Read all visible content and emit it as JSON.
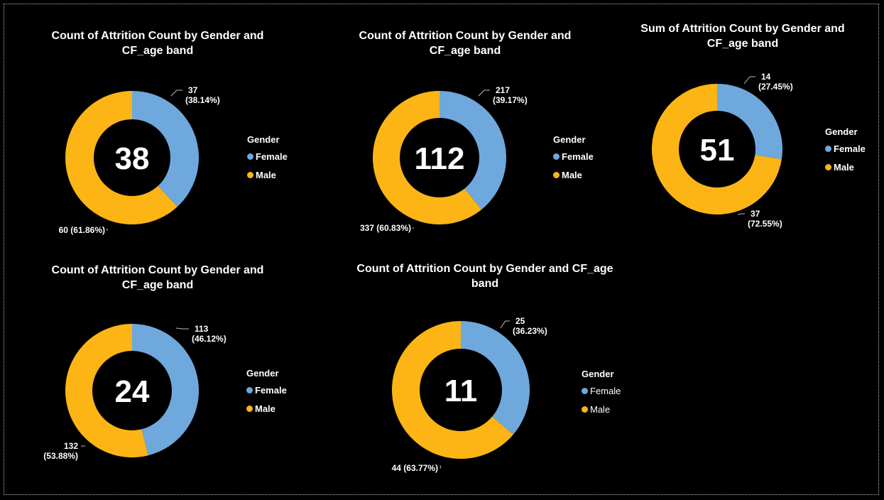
{
  "colors": {
    "female": "#6fa8dc",
    "male": "#fdb515",
    "hole": "#000000",
    "leader": "#bbbbbb"
  },
  "chart_data": [
    {
      "type": "pie",
      "title": "Count of Attrition Count by Gender and CF_age band",
      "title_lines": [
        "Count of Attrition Count by Gender and",
        "CF_age band"
      ],
      "center_value": "38",
      "legend_title": "Gender",
      "categories": [
        "Female",
        "Male"
      ],
      "values": [
        37,
        60
      ],
      "labels": [
        [
          "37",
          "(38.14%)"
        ],
        [
          "60 (61.86%)"
        ]
      ]
    },
    {
      "type": "pie",
      "title": "Count of Attrition Count by Gender and CF_age band",
      "title_lines": [
        "Count of Attrition Count by Gender and",
        "CF_age band"
      ],
      "center_value": "112",
      "legend_title": "Gender",
      "categories": [
        "Female",
        "Male"
      ],
      "values": [
        217,
        337
      ],
      "labels": [
        [
          "217",
          "(39.17%)"
        ],
        [
          "337 (60.83%)"
        ]
      ]
    },
    {
      "type": "pie",
      "title": "Sum of Attrition Count by Gender and CF_age band",
      "title_lines": [
        "Sum of Attrition Count by Gender and",
        "CF_age band"
      ],
      "center_value": "51",
      "legend_title": "Gender",
      "categories": [
        "Female",
        "Male"
      ],
      "values": [
        14,
        37
      ],
      "labels": [
        [
          "14",
          "(27.45%)"
        ],
        [
          "37",
          "(72.55%)"
        ]
      ]
    },
    {
      "type": "pie",
      "title": "Count of Attrition Count by Gender and CF_age band",
      "title_lines": [
        "Count of Attrition Count by Gender and",
        "CF_age band"
      ],
      "center_value": "24",
      "legend_title": "Gender",
      "categories": [
        "Female",
        "Male"
      ],
      "values": [
        113,
        132
      ],
      "labels": [
        [
          "113",
          "(46.12%)"
        ],
        [
          "132",
          "(53.88%)"
        ]
      ]
    },
    {
      "type": "pie",
      "title": "Count of Attrition Count by Gender and CF_age band",
      "title_lines": [
        "Count of Attrition Count by Gender and CF_age",
        "band"
      ],
      "center_value": "11",
      "legend_title": "Gender",
      "categories": [
        "Female",
        "Male"
      ],
      "values": [
        25,
        44
      ],
      "labels": [
        [
          "25",
          "(36.23%)"
        ],
        [
          "44 (63.77%)"
        ]
      ]
    }
  ]
}
